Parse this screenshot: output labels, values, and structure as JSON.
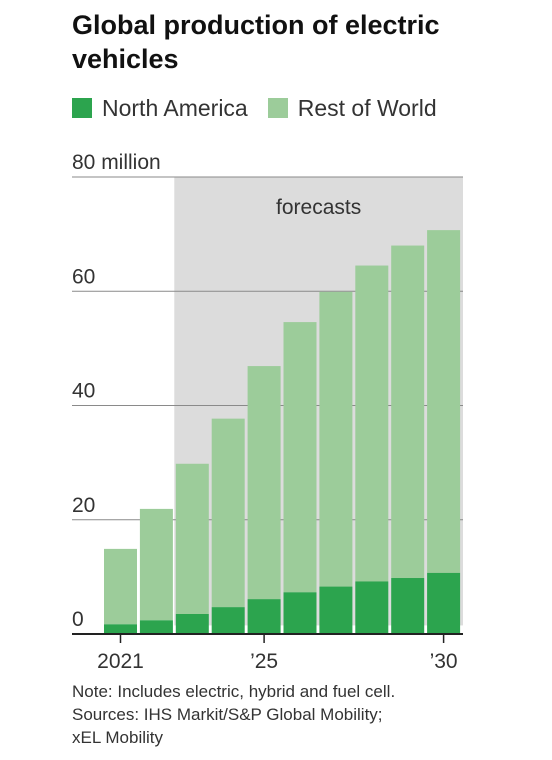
{
  "title": "Global production of electric vehicles",
  "colors": {
    "north_america": "#2ca44e",
    "rest_of_world": "#9ccc9a",
    "forecast_band": "#dcdcdc",
    "gridline": "#8a8a8a",
    "axis": "#222222"
  },
  "chart_data": {
    "type": "bar",
    "stacked": true,
    "categories": [
      "2021",
      "2022",
      "2023",
      "2024",
      "2025",
      "2026",
      "2027",
      "2028",
      "2029",
      "2030"
    ],
    "series": [
      {
        "name": "North America",
        "values": [
          1.7,
          2.4,
          3.5,
          4.7,
          6.1,
          7.3,
          8.3,
          9.2,
          9.8,
          10.7
        ]
      },
      {
        "name": "Rest of World",
        "values": [
          13.2,
          19.5,
          26.3,
          33.0,
          40.8,
          47.3,
          51.6,
          55.3,
          58.2,
          60.0
        ]
      }
    ],
    "ylim": [
      0,
      80
    ],
    "yticks": [
      {
        "value": 0,
        "label": "0"
      },
      {
        "value": 20,
        "label": "20"
      },
      {
        "value": 40,
        "label": "40"
      },
      {
        "value": 60,
        "label": "60"
      },
      {
        "value": 80,
        "label": "80 million"
      }
    ],
    "xtick_labels": [
      {
        "category": "2021",
        "label": "2021"
      },
      {
        "category": "2025",
        "label": "’25"
      },
      {
        "category": "2030",
        "label": "’30"
      }
    ],
    "forecast": {
      "label": "forecasts",
      "from_category": "2023",
      "to_category": "2030"
    },
    "legend_placement": "top",
    "grid": true
  },
  "notes": {
    "note": "Note: Includes electric, hybrid and fuel cell.",
    "sources_line1": "Sources: IHS Markit/S&P Global Mobility;",
    "sources_line2": "xEL Mobility"
  }
}
